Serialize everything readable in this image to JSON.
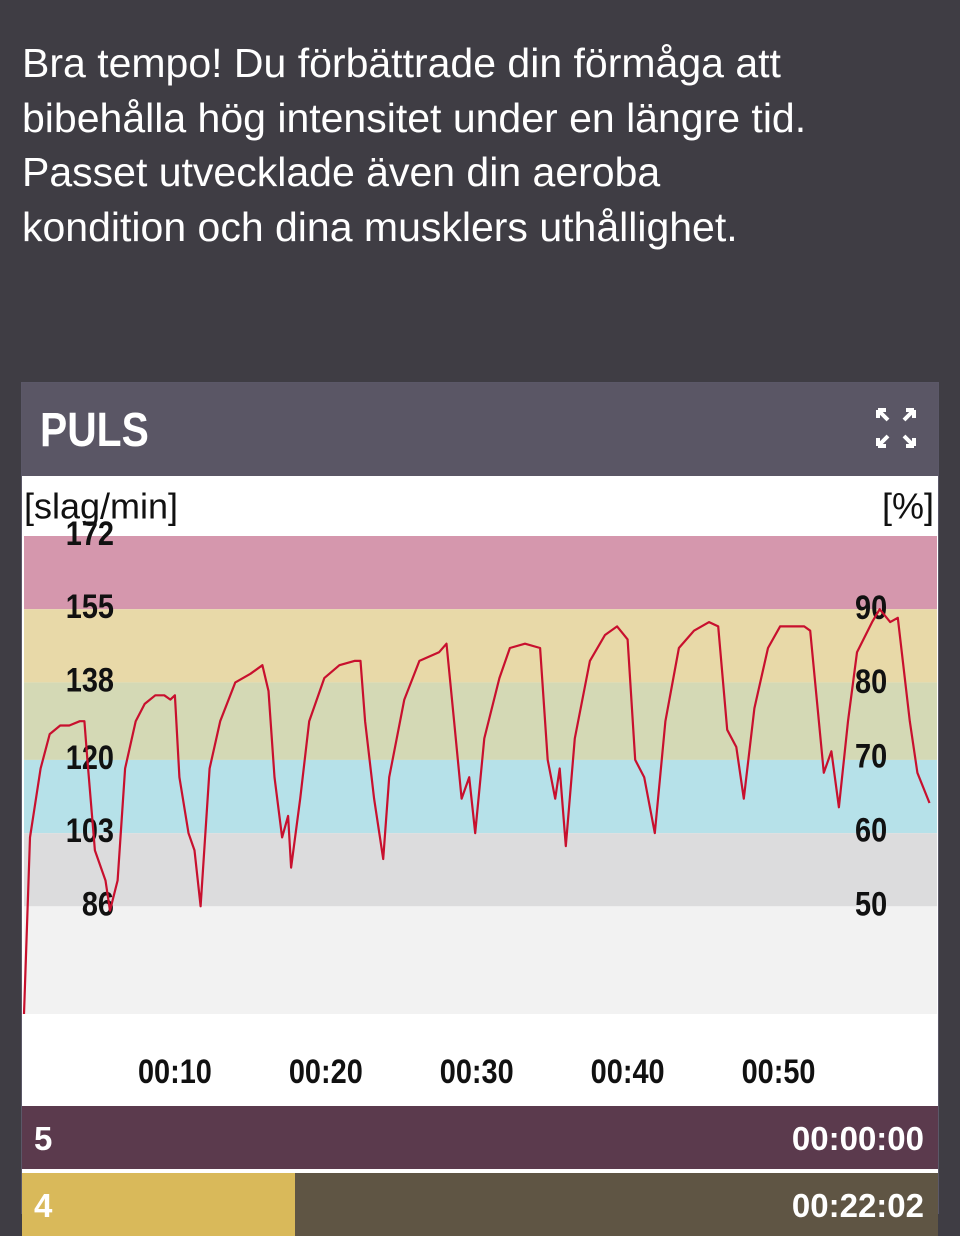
{
  "message_lines": [
    "Bra tempo! Du förbättrade din förmåga att",
    "bibehålla hög intensitet under en längre tid.",
    "Passet utvecklade även din aeroba",
    "kondition och dina musklers uthållighet."
  ],
  "panel": {
    "title": "PULS"
  },
  "chart_data": {
    "type": "line",
    "y_label": "[slag/min]",
    "y2_label": "[%]",
    "color": "#c8102e",
    "x": [
      0,
      0.4,
      1.1,
      1.7,
      2.4,
      3.0,
      3.7,
      4.0,
      4.2,
      4.7,
      5.4,
      5.7,
      6.2,
      6.7,
      7.4,
      8.0,
      8.7,
      9.3,
      9.7,
      10.0,
      10.3,
      10.9,
      11.3,
      11.7,
      12.3,
      13.0,
      14.0,
      15.0,
      15.8,
      16.2,
      16.6,
      17.1,
      17.5,
      17.7,
      18.3,
      18.9,
      19.9,
      20.9,
      21.9,
      22.3,
      22.6,
      23.2,
      23.8,
      24.2,
      25.2,
      26.2,
      27.5,
      28.0,
      28.5,
      29.0,
      29.5,
      29.9,
      30.5,
      31.5,
      32.2,
      33.2,
      34.2,
      34.7,
      35.2,
      35.5,
      35.9,
      36.5,
      37.5,
      38.5,
      39.3,
      40.0,
      40.5,
      41.1,
      41.8,
      42.5,
      43.4,
      44.4,
      45.4,
      46.0,
      46.6,
      47.2,
      47.7,
      48.4,
      49.3,
      50.1,
      51.7,
      52.1,
      53.0,
      53.5,
      54.0,
      54.6,
      55.2,
      56.2,
      56.7,
      57.4,
      57.9,
      58.7,
      59.2,
      60.0
    ],
    "values": [
      61,
      102,
      118,
      126,
      128,
      128,
      129,
      129,
      120,
      99,
      92,
      85,
      92,
      118,
      129,
      133,
      135,
      135,
      134,
      135,
      116,
      103,
      99,
      86,
      118,
      129,
      138,
      140,
      142,
      136,
      116,
      102,
      107,
      95,
      111,
      129,
      139,
      142,
      143,
      143,
      129,
      111,
      97,
      116,
      134,
      143,
      145,
      147,
      129,
      111,
      116,
      103,
      125,
      139,
      146,
      147,
      146,
      120,
      111,
      118,
      100,
      125,
      143,
      149,
      151,
      148,
      120,
      116,
      103,
      129,
      146,
      150,
      152,
      151,
      127,
      123,
      111,
      132,
      146,
      151,
      151,
      150,
      117,
      122,
      109,
      129,
      145,
      152,
      155,
      152,
      153,
      129,
      117,
      110
    ],
    "xlim": [
      0,
      60.5
    ],
    "xticks": [
      {
        "value": 10,
        "label": "00:10"
      },
      {
        "value": 20,
        "label": "00:20"
      },
      {
        "value": 30,
        "label": "00:30"
      },
      {
        "value": 40,
        "label": "00:40"
      },
      {
        "value": 50,
        "label": "00:50"
      }
    ],
    "ylim": [
      61,
      172
    ],
    "yticks": [
      86,
      103,
      120,
      138,
      155,
      172
    ],
    "y2lim": [
      35.5,
      100
    ],
    "y2ticks": [
      50,
      60,
      70,
      80,
      90
    ],
    "zones": [
      {
        "from": 155,
        "to": 172,
        "color": "#d597ad"
      },
      {
        "from": 138,
        "to": 155,
        "color": "#e8d9a8"
      },
      {
        "from": 120,
        "to": 138,
        "color": "#d4d9b5"
      },
      {
        "from": 103,
        "to": 120,
        "color": "#b6e1e9"
      },
      {
        "from": 86,
        "to": 103,
        "color": "#dcdcdd"
      },
      {
        "from": 61,
        "to": 86,
        "color": "#f2f2f2"
      }
    ]
  },
  "zone_rows": [
    {
      "zone": "5",
      "time": "00:00:00"
    },
    {
      "zone": "4",
      "time": "00:22:02"
    }
  ]
}
